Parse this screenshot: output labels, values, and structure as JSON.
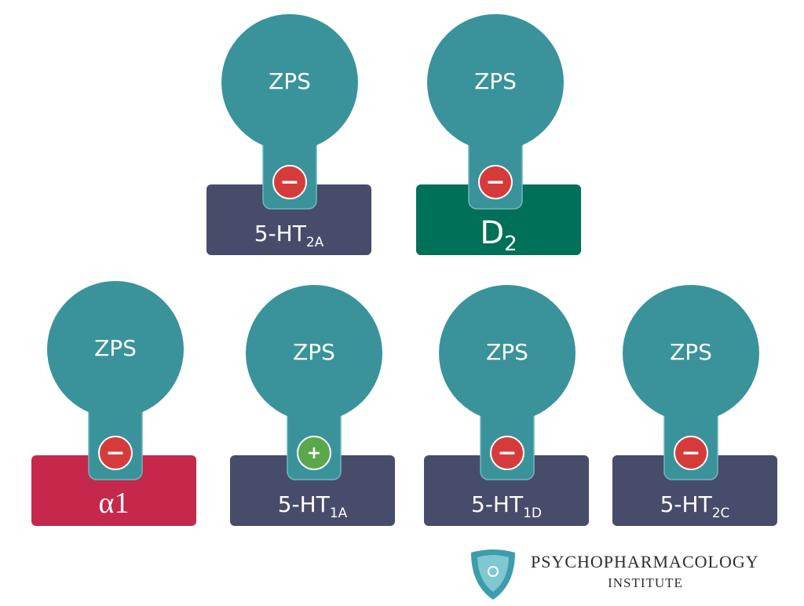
{
  "receptors": [
    {
      "ligand": "ZPS",
      "label": "5-HT",
      "subscript": "2A",
      "effect": "−",
      "color": "#474c6b"
    },
    {
      "ligand": "ZPS",
      "label": "D",
      "subscript": "2",
      "effect": "−",
      "color": "#017058"
    },
    {
      "ligand": "ZPS",
      "label": "α1",
      "effect": "−",
      "color": "#c5284a"
    },
    {
      "ligand": "ZPS",
      "label": "5-HT",
      "subscript": "1A",
      "effect": "+",
      "color": "#474c6b"
    },
    {
      "ligand": "ZPS",
      "label": "5-HT",
      "subscript": "1D",
      "effect": "−",
      "color": "#474c6b"
    },
    {
      "ligand": "ZPS",
      "label": "5-HT",
      "subscript": "2C",
      "effect": "−",
      "color": "#474c6b"
    }
  ],
  "logo": {
    "line1": "PSYCHOPHARMACOLOGY",
    "line2": "INSTITUTE"
  }
}
